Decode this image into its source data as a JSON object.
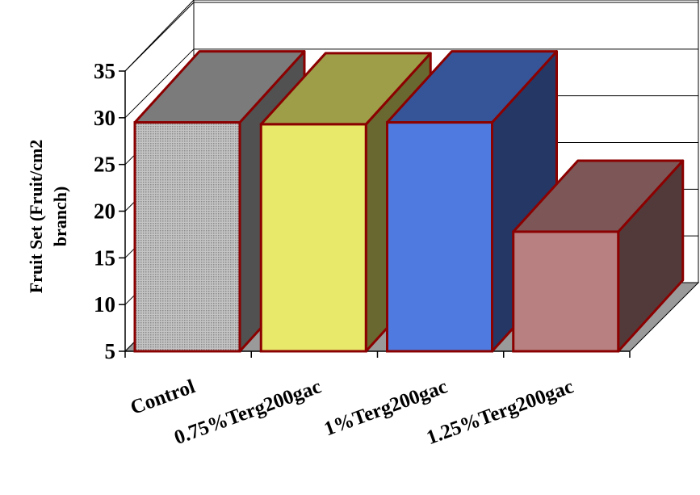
{
  "chart_data": {
    "type": "bar",
    "style": "3d-column",
    "categories": [
      "Control",
      "0.75%Terg200gac",
      "1%Terg200gac",
      "1.25%Terg200gac"
    ],
    "values": [
      29.5,
      29.3,
      29.5,
      17.8
    ],
    "ylabel_line1": "Fruit Set (Fruit/cm2",
    "ylabel_line2": "branch)",
    "ylim": [
      5,
      35
    ],
    "yticks": [
      "5",
      "10",
      "15",
      "20",
      "25",
      "30",
      "35"
    ],
    "grid": true,
    "colors": {
      "Control": "#b5b5b5",
      "0.75%Terg200gac": "#e8e86a",
      "1%Terg200gac": "#4f7be0",
      "1.25%Terg200gac": "#b88080",
      "outline": "#8b0000",
      "floor": "#9a9a9a"
    }
  }
}
